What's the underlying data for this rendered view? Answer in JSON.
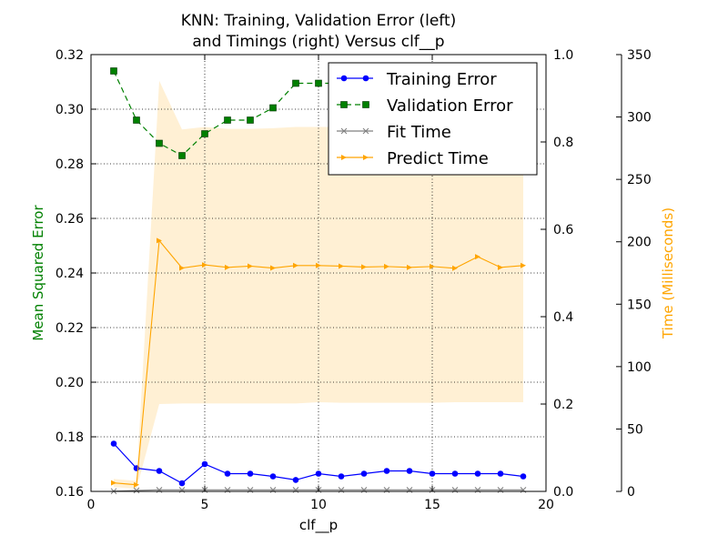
{
  "chart_data": {
    "type": "line",
    "title_line1": "KNN: Training, Validation Error (left)",
    "title_line2": "and Timings (right) Versus clf__p",
    "xlabel": "clf__p",
    "ylabel_left": "Mean Squared Error",
    "ylabel_right": "Time (Milliseconds)",
    "xlim": [
      0,
      20
    ],
    "ylim_left": [
      0.16,
      0.32
    ],
    "ylim_right_inner": [
      0.0,
      1.0
    ],
    "ylim_right_time": [
      0,
      350
    ],
    "grid": true,
    "legend_position": "top-right",
    "x_ticks": [
      "0",
      "5",
      "10",
      "15",
      "20"
    ],
    "y_left_ticks": [
      "0.16",
      "0.18",
      "0.20",
      "0.22",
      "0.24",
      "0.26",
      "0.28",
      "0.30",
      "0.32"
    ],
    "y_right_inner_ticks": [
      "0.0",
      "0.2",
      "0.4",
      "0.6",
      "0.8",
      "1.0"
    ],
    "y_right_time_ticks": [
      "0",
      "50",
      "100",
      "150",
      "200",
      "250",
      "300",
      "350"
    ],
    "x": [
      1,
      2,
      3,
      4,
      5,
      6,
      7,
      8,
      9,
      10,
      11,
      12,
      13,
      14,
      15,
      16,
      17,
      18,
      19
    ],
    "series": [
      {
        "name": "Training Error",
        "color": "#0000ff",
        "axis": "left",
        "marker": "circle",
        "values": [
          0.1775,
          0.1685,
          0.1675,
          0.163,
          0.17,
          0.1665,
          0.1665,
          0.1655,
          0.1642,
          0.1665,
          0.1655,
          0.1665,
          0.1675,
          0.1675,
          0.1665,
          0.1665,
          0.1665,
          0.1665,
          0.1655
        ]
      },
      {
        "name": "Validation Error",
        "color": "#008000",
        "axis": "left",
        "marker": "square",
        "values": [
          0.314,
          0.296,
          0.2875,
          0.283,
          0.291,
          0.296,
          0.296,
          0.3005,
          0.3095,
          0.3095,
          0.3095,
          0.3095,
          0.3095,
          0.3095,
          0.3095,
          0.3095,
          0.3095,
          0.3095,
          0.3095
        ]
      },
      {
        "name": "Fit Time",
        "color": "#808080",
        "axis": "time",
        "marker": "cross",
        "values": [
          0.2,
          0.8,
          1.2,
          1.2,
          1.2,
          1.2,
          1.2,
          1.2,
          1.2,
          1.2,
          1.2,
          1.2,
          1.2,
          1.2,
          1.2,
          1.2,
          1.2,
          1.2,
          1.2
        ]
      },
      {
        "name": "Predict Time",
        "color": "#ffa500",
        "axis": "time",
        "marker": "tri",
        "values": [
          6.8,
          5.3,
          201.0,
          179.0,
          181.5,
          179.5,
          180.5,
          179.0,
          181.0,
          181.0,
          180.5,
          179.8,
          180.2,
          179.5,
          180.2,
          178.8,
          188.0,
          179.5,
          181.0
        ],
        "band_lower": [
          3.5,
          2.0,
          70.0,
          70.5,
          70.5,
          70.5,
          70.5,
          70.5,
          70.5,
          71.5,
          71.0,
          71.0,
          71.0,
          71.0,
          71.0,
          71.5,
          71.5,
          71.5,
          71.5
        ],
        "band_upper": [
          10.0,
          8.5,
          329.0,
          290.0,
          292.0,
          290.5,
          290.5,
          291.0,
          292.0,
          292.0,
          292.0,
          292.0,
          292.0,
          292.0,
          292.0,
          292.0,
          292.0,
          292.0,
          292.0
        ]
      }
    ]
  }
}
